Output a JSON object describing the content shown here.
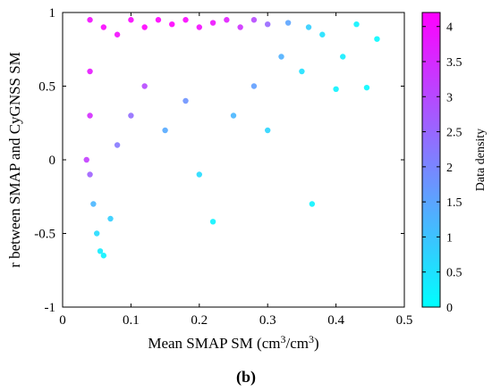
{
  "chart_data": {
    "type": "scatter",
    "title": "",
    "xlabel": "Mean SMAP SM (cm",
    "xlabel_sup1": "3",
    "xlabel_mid": "/cm",
    "xlabel_sup2": "3",
    "xlabel_end": ")",
    "ylabel": "r between SMAP and CyGNSS SM",
    "xlim": [
      0,
      0.5
    ],
    "ylim": [
      -1,
      1
    ],
    "xticks": [
      0,
      0.1,
      0.2,
      0.3,
      0.4,
      0.5
    ],
    "xtick_labels": [
      "0",
      "0.1",
      "0.2",
      "0.3",
      "0.4",
      "0.5"
    ],
    "yticks": [
      -1,
      -0.5,
      0,
      0.5,
      1
    ],
    "ytick_labels": [
      "-1",
      "-0.5",
      "0",
      "0.5",
      "1"
    ],
    "grid": false,
    "colorbar": {
      "label": "Data density",
      "range": [
        0,
        4.2
      ],
      "ticks": [
        0,
        0.5,
        1,
        1.5,
        2,
        2.5,
        3,
        3.5,
        4
      ],
      "tick_labels": [
        "0",
        "0.5",
        "1",
        "1.5",
        "2",
        "2.5",
        "3",
        "3.5",
        "4"
      ],
      "color_low": "#00ffff",
      "color_high": "#ff00ff"
    },
    "points_sample": [
      {
        "x": 0.04,
        "y": 0.95,
        "d": 4.0
      },
      {
        "x": 0.06,
        "y": 0.9,
        "d": 4.1
      },
      {
        "x": 0.08,
        "y": 0.85,
        "d": 4.0
      },
      {
        "x": 0.1,
        "y": 0.95,
        "d": 4.1
      },
      {
        "x": 0.12,
        "y": 0.9,
        "d": 4.2
      },
      {
        "x": 0.14,
        "y": 0.95,
        "d": 4.2
      },
      {
        "x": 0.16,
        "y": 0.92,
        "d": 4.2
      },
      {
        "x": 0.18,
        "y": 0.95,
        "d": 4.1
      },
      {
        "x": 0.2,
        "y": 0.9,
        "d": 4.0
      },
      {
        "x": 0.22,
        "y": 0.93,
        "d": 3.9
      },
      {
        "x": 0.24,
        "y": 0.95,
        "d": 3.7
      },
      {
        "x": 0.26,
        "y": 0.9,
        "d": 3.4
      },
      {
        "x": 0.28,
        "y": 0.95,
        "d": 3.0
      },
      {
        "x": 0.3,
        "y": 0.92,
        "d": 2.5
      },
      {
        "x": 0.33,
        "y": 0.93,
        "d": 1.5
      },
      {
        "x": 0.36,
        "y": 0.9,
        "d": 0.8
      },
      {
        "x": 0.38,
        "y": 0.85,
        "d": 0.5
      },
      {
        "x": 0.04,
        "y": 0.6,
        "d": 3.8
      },
      {
        "x": 0.04,
        "y": 0.3,
        "d": 3.5
      },
      {
        "x": 0.035,
        "y": 0.0,
        "d": 3.2
      },
      {
        "x": 0.04,
        "y": -0.1,
        "d": 2.6
      },
      {
        "x": 0.045,
        "y": -0.3,
        "d": 1.2
      },
      {
        "x": 0.05,
        "y": -0.5,
        "d": 0.6
      },
      {
        "x": 0.055,
        "y": -0.62,
        "d": 0.3
      },
      {
        "x": 0.06,
        "y": -0.65,
        "d": 0.2
      },
      {
        "x": 0.07,
        "y": -0.4,
        "d": 0.8
      },
      {
        "x": 0.08,
        "y": 0.1,
        "d": 2.2
      },
      {
        "x": 0.1,
        "y": 0.3,
        "d": 2.4
      },
      {
        "x": 0.12,
        "y": 0.5,
        "d": 3.0
      },
      {
        "x": 0.15,
        "y": 0.2,
        "d": 1.4
      },
      {
        "x": 0.18,
        "y": 0.4,
        "d": 1.8
      },
      {
        "x": 0.2,
        "y": -0.1,
        "d": 0.6
      },
      {
        "x": 0.22,
        "y": -0.42,
        "d": 0.2
      },
      {
        "x": 0.25,
        "y": 0.3,
        "d": 1.2
      },
      {
        "x": 0.28,
        "y": 0.5,
        "d": 1.6
      },
      {
        "x": 0.3,
        "y": 0.2,
        "d": 0.7
      },
      {
        "x": 0.32,
        "y": 0.7,
        "d": 1.3
      },
      {
        "x": 0.35,
        "y": 0.6,
        "d": 0.5
      },
      {
        "x": 0.365,
        "y": -0.3,
        "d": 0.2
      },
      {
        "x": 0.4,
        "y": 0.48,
        "d": 0.2
      },
      {
        "x": 0.41,
        "y": 0.7,
        "d": 0.3
      },
      {
        "x": 0.43,
        "y": 0.92,
        "d": 0.2
      },
      {
        "x": 0.445,
        "y": 0.49,
        "d": 0.1
      },
      {
        "x": 0.46,
        "y": 0.82,
        "d": 0.1
      }
    ]
  },
  "caption": "(b)"
}
